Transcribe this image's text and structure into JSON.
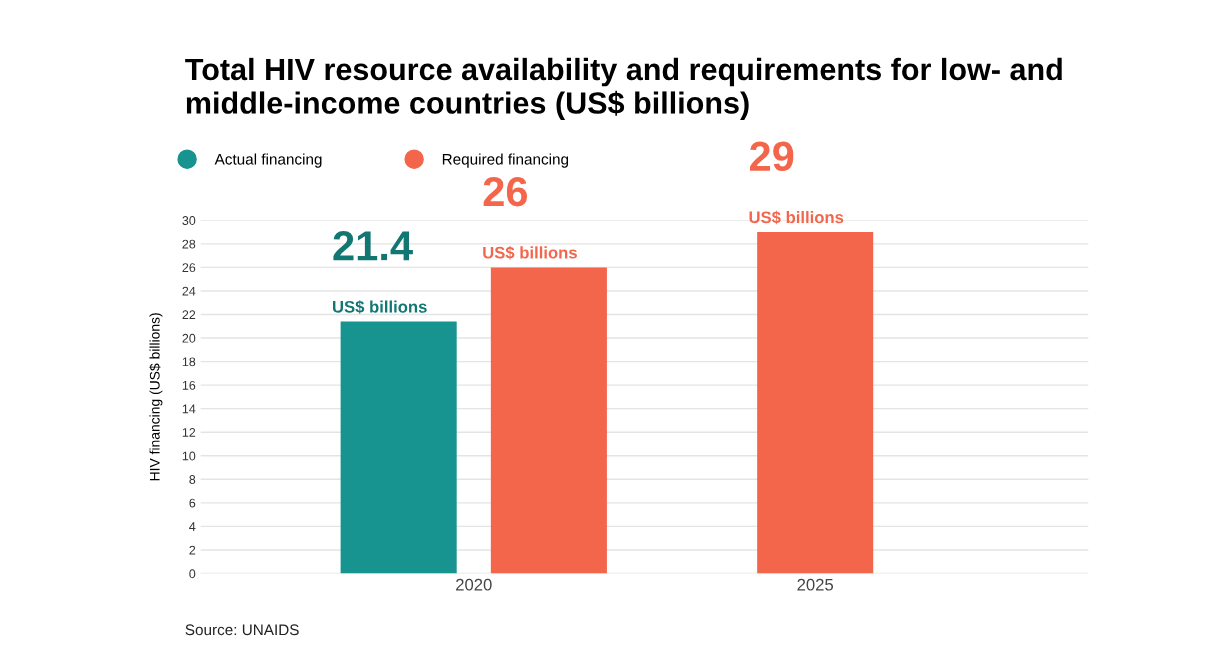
{
  "chart_data": {
    "type": "bar",
    "title": "Total HIV resource availability and requirements for low- and middle-income countries (US$ billions)",
    "ylabel": "HIV financing (US$ billions)",
    "categories": [
      "2020",
      "2025"
    ],
    "series": [
      {
        "name": "Actual financing",
        "color": "#17948f",
        "values": [
          21.4,
          null
        ],
        "value_labels": [
          "21.4\nUS$ billions",
          null
        ]
      },
      {
        "name": "Required financing",
        "color": "#f4664c",
        "values": [
          26,
          29
        ],
        "value_labels": [
          "26\nUS$ billions",
          "29\nUS$ billions"
        ]
      }
    ],
    "ylim": [
      0,
      30
    ],
    "yticks": [
      0,
      2,
      4,
      6,
      8,
      10,
      12,
      14,
      16,
      18,
      20,
      22,
      24,
      26,
      28,
      30
    ],
    "grid": "y",
    "legend": "top left",
    "annotations": [
      "Source: UNAIDS"
    ]
  }
}
